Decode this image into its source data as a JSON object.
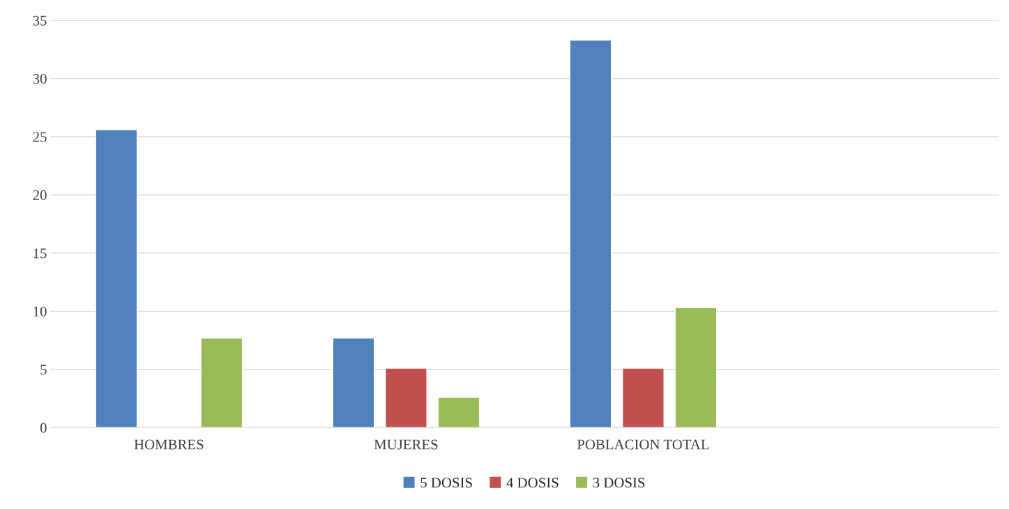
{
  "chart_data": {
    "type": "bar",
    "categories": [
      "HOMBRES",
      "MUJERES",
      "POBLACION TOTAL",
      null
    ],
    "series": [
      {
        "name": "5 DOSIS",
        "color": "#4f81bd",
        "values": [
          25.6,
          7.7,
          33.3,
          null
        ]
      },
      {
        "name": "4 DOSIS",
        "color": "#c0504d",
        "values": [
          null,
          5.1,
          5.1,
          null
        ]
      },
      {
        "name": "3 DOSIS",
        "color": "#9bbb59",
        "values": [
          7.7,
          2.6,
          10.3,
          null
        ]
      }
    ],
    "ylim": [
      0,
      35
    ],
    "yticks": [
      0,
      5,
      10,
      15,
      20,
      25,
      30,
      35
    ],
    "grid": "y",
    "legend": "bottom"
  }
}
